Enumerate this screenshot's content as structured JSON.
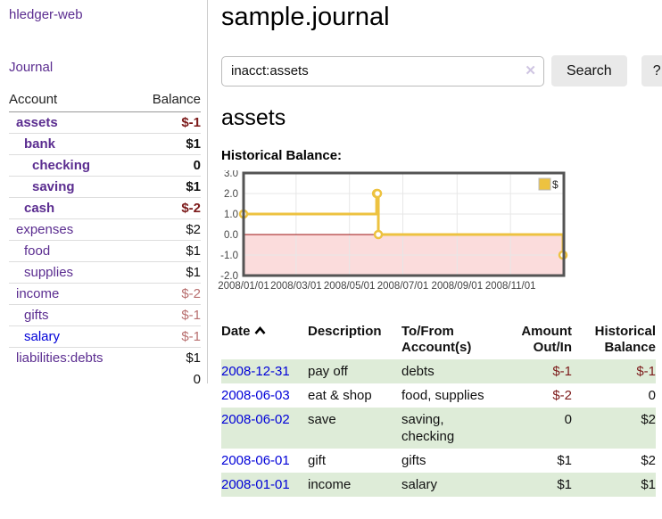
{
  "app": {
    "brand": "hledger-web",
    "nav_journal": "Journal"
  },
  "sidebar": {
    "accounts": {
      "headers": [
        "Account",
        "Balance"
      ],
      "rows": [
        {
          "name": "assets",
          "balance": "$-1",
          "depth": 0,
          "bold": true,
          "neg": "strong"
        },
        {
          "name": "bank",
          "balance": "$1",
          "depth": 1,
          "bold": true,
          "neg": null
        },
        {
          "name": "checking",
          "balance": "0",
          "depth": 2,
          "bold": true,
          "neg": null
        },
        {
          "name": "saving",
          "balance": "$1",
          "depth": 2,
          "bold": true,
          "neg": null
        },
        {
          "name": "cash",
          "balance": "$-2",
          "depth": 1,
          "bold": true,
          "neg": "strong"
        },
        {
          "name": "expenses",
          "balance": "$2",
          "depth": 0,
          "bold": false,
          "neg": null
        },
        {
          "name": "food",
          "balance": "$1",
          "depth": 1,
          "bold": false,
          "neg": null
        },
        {
          "name": "supplies",
          "balance": "$1",
          "depth": 1,
          "bold": false,
          "neg": null
        },
        {
          "name": "income",
          "balance": "$-2",
          "depth": 0,
          "bold": false,
          "neg": "muted"
        },
        {
          "name": "gifts",
          "balance": "$-1",
          "depth": 1,
          "bold": false,
          "neg": "muted"
        },
        {
          "name": "salary",
          "balance": "$-1",
          "depth": 1,
          "bold": false,
          "neg": "muted",
          "link_blue": true
        },
        {
          "name": "liabilities:debts",
          "balance": "$1",
          "depth": 0,
          "bold": false,
          "neg": null
        }
      ],
      "total": "0"
    }
  },
  "main": {
    "title": "sample.journal",
    "search": {
      "value": "inacct:assets",
      "clear_icon": "✕",
      "search_button": "Search",
      "help_button": "?"
    },
    "account_heading": "assets",
    "chart_heading": "Historical Balance:"
  },
  "chart_data": {
    "type": "line",
    "title": "Historical Balance:",
    "step": true,
    "xlim": [
      0,
      366
    ],
    "ylim": [
      -2,
      3
    ],
    "yticks": [
      3.0,
      2.0,
      1.0,
      0.0,
      -1.0,
      -2.0
    ],
    "xticks": [
      {
        "x": 0,
        "label": "2008/01/01"
      },
      {
        "x": 60,
        "label": "2008/03/01"
      },
      {
        "x": 121,
        "label": "2008/05/01"
      },
      {
        "x": 182,
        "label": "2008/07/01"
      },
      {
        "x": 244,
        "label": "2008/09/01"
      },
      {
        "x": 305,
        "label": "2008/11/01"
      }
    ],
    "series": [
      {
        "name": "$",
        "color": "#edc240",
        "points": [
          {
            "date": "2008/01/01",
            "x": 0,
            "y": 1
          },
          {
            "date": "2008/06/01",
            "x": 152,
            "y": 2
          },
          {
            "date": "2008/06/02",
            "x": 153,
            "y": 2
          },
          {
            "date": "2008/06/03",
            "x": 154,
            "y": 0
          },
          {
            "date": "2008/12/31",
            "x": 365,
            "y": -1
          }
        ]
      }
    ],
    "legend": {
      "position": "top-right",
      "entries": [
        {
          "label": "$",
          "color": "#edc240"
        }
      ]
    },
    "grid": true,
    "negative_region_fill": "#fbdcdc",
    "zero_line_color": "#9c1010",
    "border_color": "#545454"
  },
  "register": {
    "headers": [
      "Date",
      "Description",
      "To/From Account(s)",
      "Amount Out/In",
      "Historical Balance"
    ],
    "rows": [
      {
        "date": "2008-12-31",
        "description": "pay off",
        "accounts": "debts",
        "amount": "$-1",
        "balance": "$-1",
        "amount_neg": true,
        "balance_neg": true
      },
      {
        "date": "2008-06-03",
        "description": "eat & shop",
        "accounts": "food, supplies",
        "amount": "$-2",
        "balance": "0",
        "amount_neg": true,
        "balance_neg": false
      },
      {
        "date": "2008-06-02",
        "description": "save",
        "accounts": "saving, checking",
        "amount": "0",
        "balance": "$2",
        "amount_neg": false,
        "balance_neg": false
      },
      {
        "date": "2008-06-01",
        "description": "gift",
        "accounts": "gifts",
        "amount": "$1",
        "balance": "$2",
        "amount_neg": false,
        "balance_neg": false
      },
      {
        "date": "2008-01-01",
        "description": "income",
        "accounts": "salary",
        "amount": "$1",
        "balance": "$1",
        "amount_neg": false,
        "balance_neg": false
      }
    ]
  },
  "colors": {
    "link_purple": "#5b2d90",
    "link_blue": "#0000d8",
    "negative_strong": "#7c1a1a",
    "negative_muted": "#b86f6f",
    "row_stripe_green": "#deecd8",
    "series_gold": "#edc240"
  }
}
